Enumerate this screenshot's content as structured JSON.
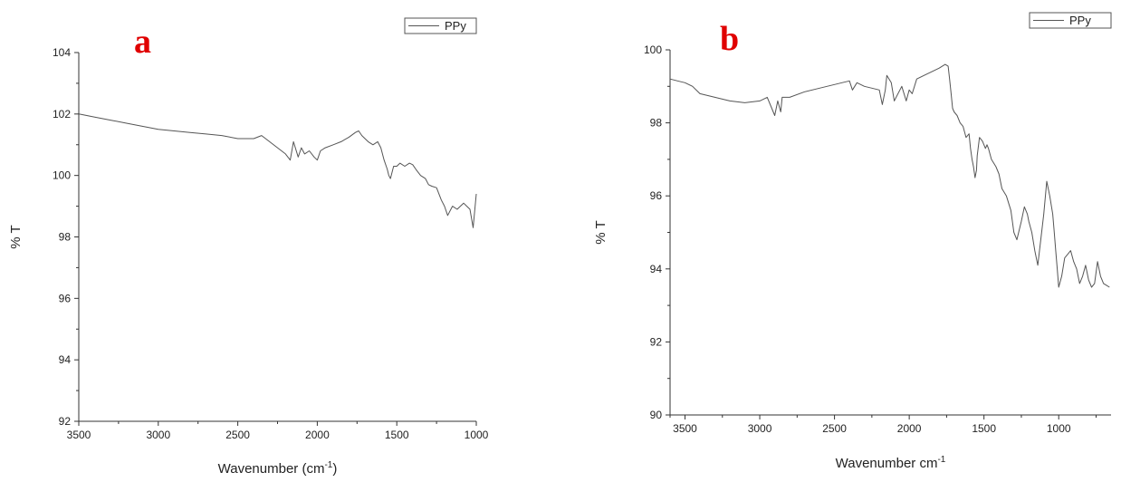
{
  "chart_data": [
    {
      "type": "line",
      "panel_label": "a",
      "xlabel": "Wavenumber (cm",
      "xlabel_sup": "-1",
      "xlabel_tail": ")",
      "ylabel": "% T",
      "xlim": [
        3500,
        1000
      ],
      "ylim": [
        92,
        104
      ],
      "xticks": [
        "3500",
        "3000",
        "2500",
        "2000",
        "1500",
        "1000"
      ],
      "yticks": [
        "92",
        "94",
        "96",
        "98",
        "100",
        "102",
        "104"
      ],
      "legend_position": "top-right",
      "series": [
        {
          "name": "PPy",
          "color": "#555555",
          "x": [
            3500,
            3400,
            3300,
            3200,
            3100,
            3000,
            2900,
            2800,
            2700,
            2600,
            2500,
            2400,
            2350,
            2300,
            2250,
            2200,
            2170,
            2150,
            2120,
            2100,
            2080,
            2050,
            2020,
            2000,
            1980,
            1950,
            1900,
            1850,
            1800,
            1760,
            1740,
            1720,
            1700,
            1680,
            1650,
            1620,
            1600,
            1580,
            1560,
            1550,
            1540,
            1520,
            1500,
            1480,
            1450,
            1420,
            1400,
            1380,
            1350,
            1320,
            1300,
            1280,
            1250,
            1220,
            1200,
            1180,
            1150,
            1120,
            1100,
            1080,
            1060,
            1040,
            1020,
            1000
          ],
          "y": [
            102.0,
            101.9,
            101.8,
            101.7,
            101.6,
            101.5,
            101.45,
            101.4,
            101.35,
            101.3,
            101.2,
            101.2,
            101.3,
            101.1,
            100.9,
            100.7,
            100.5,
            101.1,
            100.6,
            100.9,
            100.7,
            100.8,
            100.6,
            100.5,
            100.8,
            100.9,
            101.0,
            101.1,
            101.25,
            101.4,
            101.45,
            101.3,
            101.2,
            101.1,
            101.0,
            101.1,
            100.9,
            100.5,
            100.2,
            100.0,
            99.9,
            100.3,
            100.3,
            100.4,
            100.3,
            100.4,
            100.35,
            100.2,
            100.0,
            99.9,
            99.7,
            99.65,
            99.6,
            99.2,
            99.0,
            98.7,
            99.0,
            98.9,
            99.0,
            99.1,
            99.0,
            98.9,
            98.3,
            99.4
          ]
        }
      ]
    },
    {
      "type": "line",
      "panel_label": "b",
      "xlabel": "Wavenumber cm",
      "xlabel_sup": "-1",
      "xlabel_tail": "",
      "ylabel": "% T",
      "xlim": [
        3600,
        650
      ],
      "ylim": [
        90,
        100
      ],
      "xticks": [
        "3500",
        "3000",
        "2500",
        "2000",
        "1500",
        "1000"
      ],
      "yticks": [
        "90",
        "92",
        "94",
        "96",
        "98",
        "100"
      ],
      "legend_position": "top-right",
      "series": [
        {
          "name": "PPy",
          "color": "#555555",
          "x": [
            3600,
            3550,
            3500,
            3450,
            3400,
            3300,
            3200,
            3100,
            3000,
            2950,
            2920,
            2900,
            2880,
            2860,
            2850,
            2800,
            2700,
            2600,
            2500,
            2450,
            2400,
            2380,
            2350,
            2300,
            2250,
            2200,
            2180,
            2160,
            2150,
            2120,
            2100,
            2050,
            2020,
            2000,
            1980,
            1950,
            1900,
            1850,
            1800,
            1760,
            1740,
            1730,
            1720,
            1710,
            1700,
            1680,
            1660,
            1640,
            1620,
            1600,
            1590,
            1580,
            1570,
            1560,
            1550,
            1545,
            1530,
            1510,
            1490,
            1480,
            1470,
            1450,
            1420,
            1400,
            1380,
            1350,
            1320,
            1300,
            1280,
            1250,
            1230,
            1210,
            1200,
            1180,
            1160,
            1140,
            1120,
            1100,
            1080,
            1060,
            1040,
            1030,
            1020,
            1010,
            1000,
            980,
            960,
            940,
            920,
            900,
            880,
            860,
            840,
            820,
            800,
            780,
            760,
            740,
            720,
            700,
            680,
            660
          ],
          "y": [
            99.2,
            99.15,
            99.1,
            99.0,
            98.8,
            98.7,
            98.6,
            98.55,
            98.6,
            98.7,
            98.4,
            98.2,
            98.6,
            98.3,
            98.7,
            98.7,
            98.85,
            98.95,
            99.05,
            99.1,
            99.15,
            98.9,
            99.1,
            99.0,
            98.95,
            98.9,
            98.5,
            98.9,
            99.3,
            99.1,
            98.6,
            99.0,
            98.6,
            98.9,
            98.8,
            99.2,
            99.3,
            99.4,
            99.5,
            99.6,
            99.55,
            99.2,
            98.8,
            98.4,
            98.3,
            98.2,
            98.0,
            97.9,
            97.6,
            97.7,
            97.3,
            97.0,
            96.8,
            96.5,
            96.7,
            97.1,
            97.6,
            97.5,
            97.3,
            97.4,
            97.3,
            97.0,
            96.8,
            96.6,
            96.2,
            96.0,
            95.6,
            95.0,
            94.8,
            95.3,
            95.7,
            95.5,
            95.3,
            95.0,
            94.5,
            94.1,
            94.8,
            95.5,
            96.4,
            96.0,
            95.5,
            95.0,
            94.5,
            94.0,
            93.5,
            93.8,
            94.3,
            94.4,
            94.5,
            94.2,
            94.0,
            93.6,
            93.8,
            94.1,
            93.7,
            93.5,
            93.6,
            94.2,
            93.8,
            93.6,
            93.55,
            93.5
          ]
        }
      ]
    }
  ]
}
